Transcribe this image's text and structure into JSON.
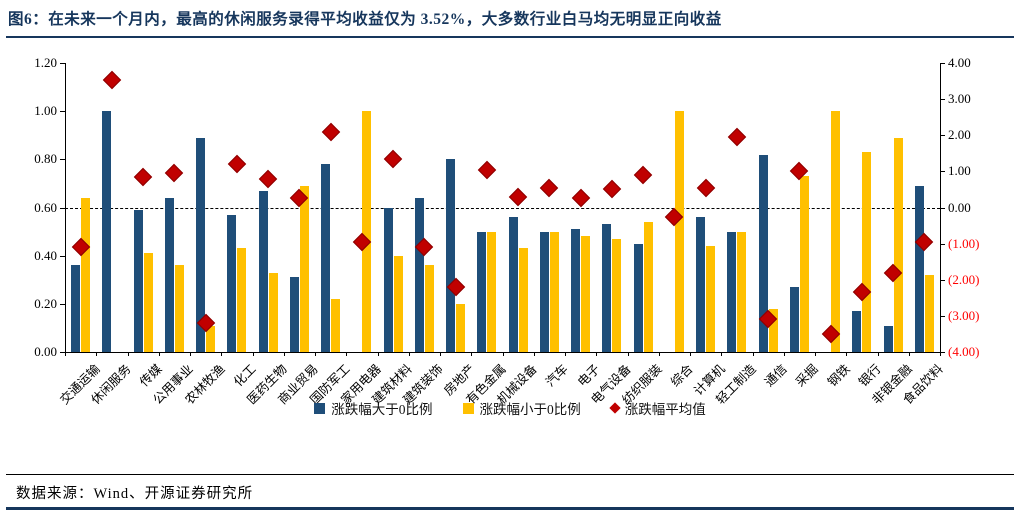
{
  "title": {
    "text": "图6：在未来一个月内，最高的休闲服务录得平均收益仅为 3.52%，大多数行业白马均无明显正向收益"
  },
  "footer": {
    "source": "数据来源：Wind、开源证券研究所"
  },
  "colors": {
    "title_navy": "#16365C",
    "bar_positive": "#1F4E79",
    "bar_negative": "#FFC000",
    "avg_marker": "#C00000",
    "negative_axis_label": "#FF0000"
  },
  "legend": [
    {
      "label": "涨跌幅大于0比例",
      "marker": "square",
      "color": "#1F4E79"
    },
    {
      "label": "涨跌幅小于0比例",
      "marker": "square",
      "color": "#FFC000"
    },
    {
      "label": "涨跌幅平均值",
      "marker": "diamond",
      "color": "#C00000"
    }
  ],
  "chart_data": {
    "type": "bar",
    "subtype": "grouped bars on left axis + diamond scatter on right axis",
    "categories": [
      "交通运输",
      "休闲服务",
      "传媒",
      "公用事业",
      "农林牧渔",
      "化工",
      "医药生物",
      "商业贸易",
      "国防军工",
      "家用电器",
      "建筑材料",
      "建筑装饰",
      "房地产",
      "有色金属",
      "机械设备",
      "汽车",
      "电子",
      "电气设备",
      "纺织服装",
      "综合",
      "计算机",
      "轻工制造",
      "通信",
      "采掘",
      "钢铁",
      "银行",
      "非银金融",
      "食品饮料"
    ],
    "series": [
      {
        "name": "涨跌幅大于0比例",
        "type": "bar",
        "axis": "left",
        "color": "#1F4E79",
        "values": [
          0.36,
          1.0,
          0.59,
          0.64,
          0.89,
          0.57,
          0.67,
          0.31,
          0.78,
          0,
          0.6,
          0.64,
          0.8,
          0.5,
          0.56,
          0.5,
          0.51,
          0.53,
          0.45,
          0,
          0.56,
          0.5,
          0.82,
          0.27,
          0,
          0.17,
          0.11,
          0.69
        ]
      },
      {
        "name": "涨跌幅小于0比例",
        "type": "bar",
        "axis": "left",
        "color": "#FFC000",
        "values": [
          0.64,
          0,
          0.41,
          0.36,
          0.11,
          0.43,
          0.33,
          0.69,
          0.22,
          1.0,
          0.4,
          0.36,
          0.2,
          0.5,
          0.43,
          0.5,
          0.48,
          0.47,
          0.54,
          1.0,
          0.44,
          0.5,
          0.18,
          0.73,
          1.0,
          0.83,
          0.89,
          0.32
        ]
      },
      {
        "name": "涨跌幅平均值",
        "type": "scatter",
        "marker": "diamond",
        "axis": "right",
        "color": "#C00000",
        "values": [
          -1.1,
          3.52,
          0.85,
          0.95,
          -3.2,
          1.2,
          0.8,
          0.25,
          2.1,
          -0.95,
          1.35,
          -1.1,
          -2.2,
          1.05,
          0.3,
          0.55,
          0.25,
          0.5,
          0.9,
          -0.25,
          0.55,
          1.95,
          -3.1,
          1.0,
          -3.5,
          -2.35,
          -1.8,
          -0.95
        ]
      }
    ],
    "left_axis": {
      "min": 0,
      "max": 1.2,
      "ticks": [
        {
          "label": "1.20",
          "v": 1.2
        },
        {
          "label": "1.00",
          "v": 1.0
        },
        {
          "label": "0.80",
          "v": 0.8
        },
        {
          "label": "0.60",
          "v": 0.6
        },
        {
          "label": "0.40",
          "v": 0.4
        },
        {
          "label": "0.20",
          "v": 0.2
        },
        {
          "label": "0.00",
          "v": 0.0
        }
      ]
    },
    "right_axis": {
      "min": -4,
      "max": 4,
      "ticks": [
        {
          "label": "4.00",
          "v": 4
        },
        {
          "label": "3.00",
          "v": 3
        },
        {
          "label": "2.00",
          "v": 2
        },
        {
          "label": "1.00",
          "v": 1
        },
        {
          "label": "0.00",
          "v": 0
        },
        {
          "label": "(1.00)",
          "v": -1,
          "negative": true
        },
        {
          "label": "(2.00)",
          "v": -2,
          "negative": true
        },
        {
          "label": "(3.00)",
          "v": -3,
          "negative": true
        },
        {
          "label": "(4.00)",
          "v": -4,
          "negative": true
        }
      ]
    },
    "reference_line": {
      "left_value": 0.6,
      "right_value": 0.0,
      "style": "dashed"
    },
    "grid": "off",
    "legend_position": "bottom"
  }
}
